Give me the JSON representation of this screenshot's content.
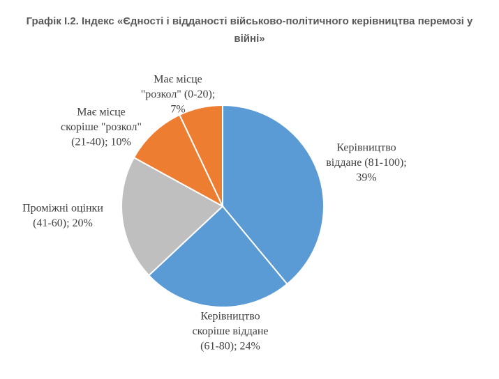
{
  "chart_data": {
    "type": "pie",
    "title": "Графік І.2. Індекс «Єдності і відданості військово-політичного керівництва перемозі у війні»",
    "categories": [
      [
        "Керівництво",
        "віддане (81-100);"
      ],
      [
        "Керівництво",
        "скоріше віддане",
        "(61-80);"
      ],
      [
        "Проміжні оцінки",
        "(41-60);"
      ],
      [
        "Має місце",
        "скоріше \"розкол\"",
        "(21-40);"
      ],
      [
        "Має місце",
        "\"розкол\" (0-20);"
      ]
    ],
    "values": [
      39,
      24,
      20,
      10,
      7
    ],
    "value_labels": [
      "39%",
      "24%",
      "20%",
      "10%",
      "7%"
    ],
    "colors": [
      "#5b9bd5",
      "#5b9bd5",
      "#bfbfbf",
      "#ed7d31",
      "#ed7d31"
    ]
  }
}
